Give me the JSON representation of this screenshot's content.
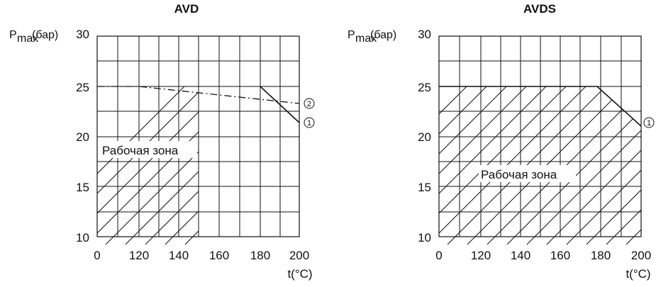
{
  "chart_data": [
    {
      "type": "line",
      "title": "AVD",
      "ylabel": {
        "symbol": "P",
        "subscript": "max",
        "unit": "(бар)"
      },
      "xlabel": "t(°C)",
      "x_ticks": [
        "0",
        "120",
        "140",
        "160",
        "180",
        "200"
      ],
      "y_ticks": [
        "10",
        "15",
        "20",
        "25",
        "30"
      ],
      "xlim": [
        0,
        200
      ],
      "ylim": [
        10,
        30
      ],
      "grid": true,
      "zone_label": "Рабочая зона",
      "operating_zone": {
        "description": "hatched region",
        "x_range": [
          0,
          150
        ],
        "upper_pressure": 25
      },
      "series": [
        {
          "id": "1",
          "marker": "①",
          "style": "solid",
          "points": [
            {
              "x": 180,
              "y": 25
            },
            {
              "x": 200,
              "y": 21.6
            }
          ]
        },
        {
          "id": "2",
          "marker": "②",
          "style": "dashed",
          "points": [
            {
              "x": 120,
              "y": 25
            },
            {
              "x": 200,
              "y": 23.3
            }
          ]
        }
      ]
    },
    {
      "type": "line",
      "title": "AVDS",
      "ylabel": {
        "symbol": "P",
        "subscript": "max",
        "unit": "(бар)"
      },
      "xlabel": "t(°C)",
      "x_ticks": [
        "0",
        "120",
        "140",
        "160",
        "180",
        "200"
      ],
      "y_ticks": [
        "10",
        "15",
        "20",
        "25",
        "30"
      ],
      "xlim": [
        0,
        200
      ],
      "ylim": [
        10,
        30
      ],
      "grid": true,
      "zone_label": "Рабочая зона",
      "operating_zone": {
        "description": "hatched region",
        "x_range": [
          0,
          200
        ],
        "upper_boundary": [
          {
            "x": 0,
            "y": 25
          },
          {
            "x": 180,
            "y": 25
          },
          {
            "x": 200,
            "y": 21.6
          }
        ]
      },
      "series": [
        {
          "id": "1",
          "marker": "①",
          "style": "solid",
          "points": [
            {
              "x": 180,
              "y": 25
            },
            {
              "x": 200,
              "y": 21.6
            }
          ]
        }
      ]
    }
  ]
}
